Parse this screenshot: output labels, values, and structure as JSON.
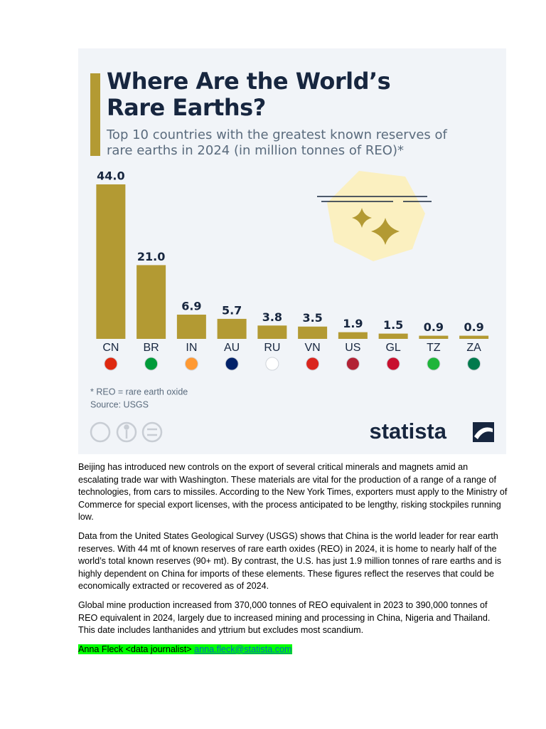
{
  "chart_data": {
    "type": "bar",
    "title": "Where Are the World’s Rare Earths?",
    "subtitle": "Top 10 countries with the greatest known reserves of rare earths in 2024 (in million tonnes of REO)*",
    "categories": [
      "CN",
      "BR",
      "IN",
      "AU",
      "RU",
      "VN",
      "US",
      "GL",
      "TZ",
      "ZA"
    ],
    "values": [
      44,
      21,
      6.9,
      5.7,
      3.8,
      3.5,
      1.9,
      1.5,
      0.9,
      0.9
    ],
    "value_labels": [
      "44.0",
      "21.0",
      "6.9",
      "5.7",
      "3.8",
      "3.5",
      "1.9",
      "1.5",
      "0.9",
      "0.9"
    ],
    "color": "#b39a33",
    "footnote": "* REO = rare earth oxide",
    "source": "Source: USGS",
    "brand": "statista"
  },
  "document": {
    "paragraphs": [
      "Beijing has introduced new controls on the export of several critical minerals and magnets amid an escalating trade war with Washington. These materials are vital for the production of a range of a range of technologies, from cars to missiles. According to the New York Times, exporters must apply to the Ministry of Commerce for special export licenses, with the process anticipated to be lengthy, risking stockpiles running low.",
      "Data from the United States Geological Survey (USGS) shows that China is the world leader for rear earth reserves. With 44 mt of known reserves of rare earth oxides (REO) in 2024, it is home to nearly half of the world’s total known reserves (90+ mt). By contrast, the U.S. has just 1.9 million tonnes of rare earths and is highly dependent on China for imports of these elements. These figures reflect the reserves that could be economically extracted or recovered as of 2024.",
      "Global mine production increased from 370,000 tonnes of REO equivalent in 2023 to 390,000 tonnes of REO equivalent in 2024, largely due to increased mining and processing in China, Nigeria and Thailand. This date includes lanthanides and yttrium but excludes most scandium."
    ],
    "author": "Anna Fleck <data journalist>",
    "email": "anna.fleck@statista.com"
  }
}
